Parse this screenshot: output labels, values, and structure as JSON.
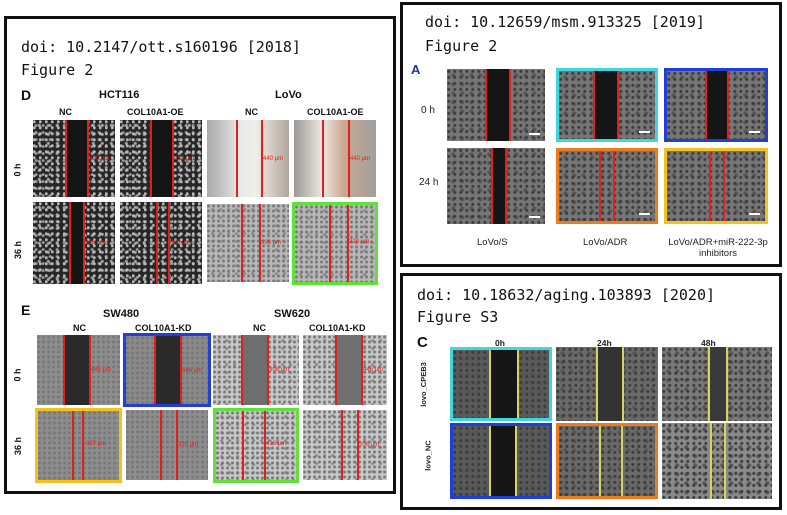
{
  "panel_left": {
    "doi": "doi: 10.2147/ott.s160196 [2018]",
    "figure": "Figure 2",
    "section_d": {
      "letter": "D",
      "groups": [
        "HCT116",
        "LoVo"
      ],
      "columns": [
        "NC",
        "COL10A1-OE",
        "NC",
        "COL10A1-OE"
      ],
      "rows": [
        "0 h",
        "36 h"
      ],
      "measures": [
        "450 μm",
        "450 μm",
        "440 μm",
        "440 μm",
        "380 μm",
        "380 μm",
        "330 μm",
        "320 μm"
      ]
    },
    "section_e": {
      "letter": "E",
      "groups": [
        "SW480",
        "SW620"
      ],
      "columns": [
        "NC",
        "COL10A1-KD",
        "NC",
        "COL10A1-KD"
      ],
      "rows": [
        "0 h",
        "36 h"
      ],
      "measures": [
        "446 μm",
        "446 μm",
        "308 μm",
        "446 μm",
        "327 μm",
        "320 μm",
        "416 μm",
        "206 μm"
      ]
    },
    "highlight_colors": {
      "green": "#5fe03a",
      "blue": "#1f3fd8",
      "yellow": "#f4c21a"
    }
  },
  "panel_top_right": {
    "doi": "doi: 10.12659/msm.913325 [2019]",
    "figure": "Figure 2",
    "letter": "A",
    "rows": [
      "0 h",
      "24 h"
    ],
    "columns": [
      "LoVo/S",
      "LoVo/ADR",
      "LoVo/ADR+miR-222-3p inhibitors"
    ],
    "highlight_colors": {
      "cyan": "#3fd6e0",
      "blue": "#1f3fd8",
      "orange": "#ee7a1e",
      "yellow": "#f4c21a"
    }
  },
  "panel_bottom_right": {
    "doi": "doi: 10.18632/aging.103893 [2020]",
    "figure": "Figure S3",
    "letter": "C",
    "columns": [
      "0h",
      "24h",
      "48h"
    ],
    "rows": [
      "lovo_CPEB3",
      "lovo_NC"
    ],
    "highlight_colors": {
      "cyan": "#3fd6e0",
      "blue": "#1f3fd8",
      "orange": "#ee7a1e"
    }
  }
}
